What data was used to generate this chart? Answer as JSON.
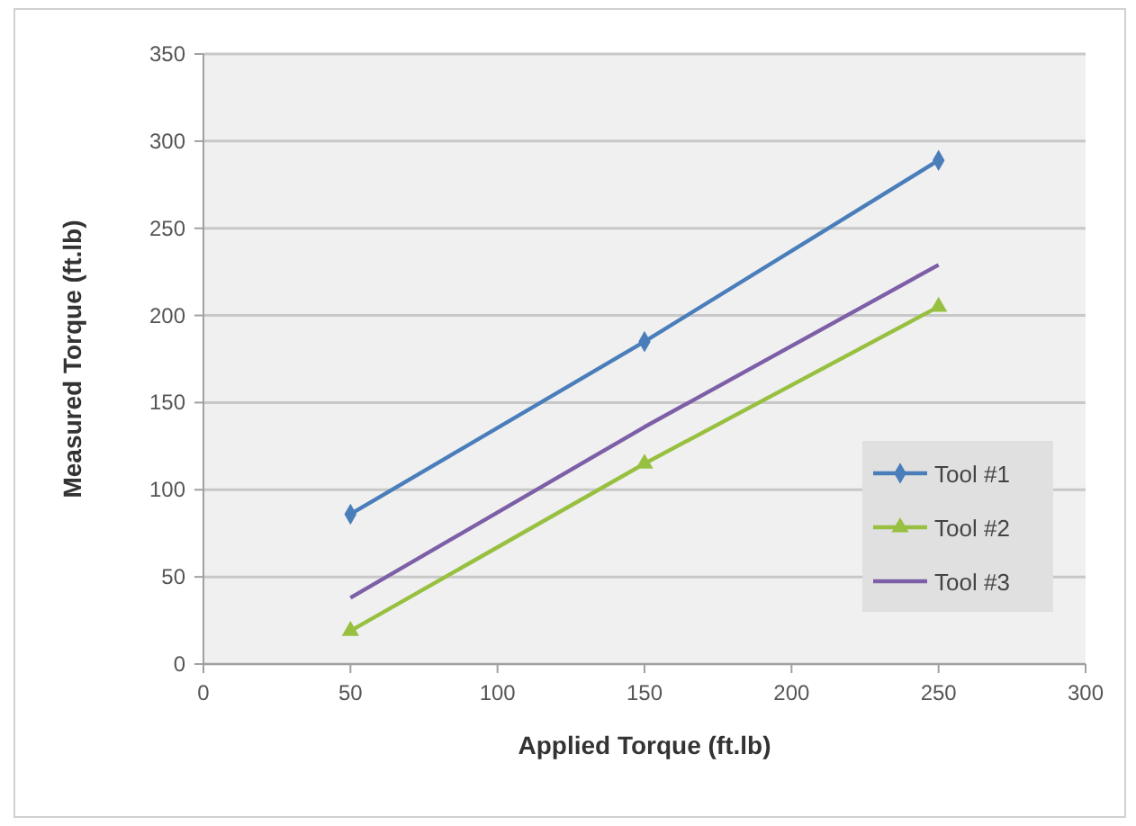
{
  "chart_data": {
    "type": "line",
    "xlabel": "Applied Torque  (ft.lb)",
    "ylabel": "Measured Torque  (ft.lb)",
    "x": [
      50,
      150,
      250
    ],
    "series": [
      {
        "name": "Tool #1",
        "color": "#4a7ebb",
        "values": [
          86,
          185,
          289
        ],
        "marker": "diamond"
      },
      {
        "name": "Tool #2",
        "color": "#98c040",
        "values": [
          19,
          115,
          205
        ],
        "marker": "triangle"
      },
      {
        "name": "Tool #3",
        "color": "#7d5fa8",
        "values": [
          38,
          136,
          229
        ],
        "marker": "none"
      }
    ],
    "xlim": [
      0,
      300
    ],
    "xticks": [
      0,
      50,
      100,
      150,
      200,
      250,
      300
    ],
    "ylim": [
      0,
      350
    ],
    "yticks": [
      0,
      50,
      100,
      150,
      200,
      250,
      300,
      350
    ],
    "grid": "y",
    "legend": "right"
  }
}
